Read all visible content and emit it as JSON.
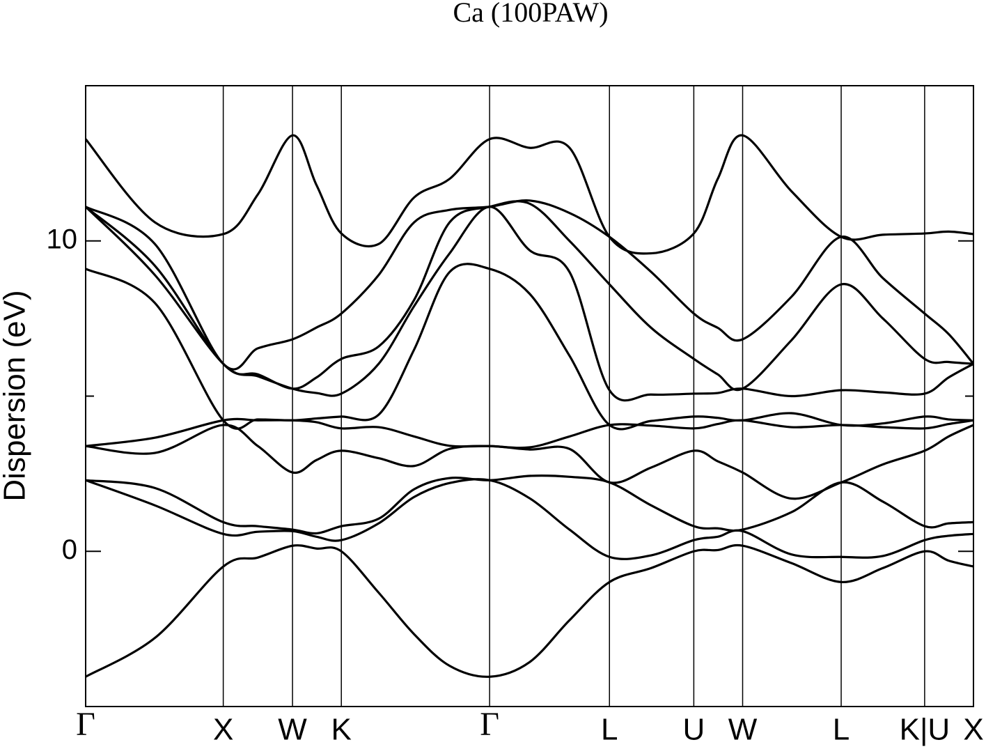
{
  "chart_data": {
    "type": "line",
    "title": "Ca (100PAW)",
    "y_label": "Dispersion (eV)",
    "color": "#000000",
    "xlim": [
      0,
      1
    ],
    "ylim": [
      -5,
      15
    ],
    "yticks": [
      0,
      10
    ],
    "yminorticks": [
      5
    ],
    "xticks": [
      {
        "value": 0,
        "label": "Γ"
      },
      {
        "value": 0.155,
        "label": "X"
      },
      {
        "value": 0.233,
        "label": "W"
      },
      {
        "value": 0.288,
        "label": "K"
      },
      {
        "value": 0.455,
        "label": "Γ"
      },
      {
        "value": 0.59,
        "label": "L"
      },
      {
        "value": 0.685,
        "label": "U"
      },
      {
        "value": 0.74,
        "label": "W"
      },
      {
        "value": 0.851,
        "label": "L"
      },
      {
        "value": 0.945,
        "label": "K|U"
      },
      {
        "value": 1,
        "label": "X"
      }
    ],
    "x": [
      0,
      0.078,
      0.155,
      0.194,
      0.233,
      0.26,
      0.288,
      0.33,
      0.37,
      0.41,
      0.455,
      0.5,
      0.545,
      0.59,
      0.637,
      0.685,
      0.712,
      0.74,
      0.795,
      0.851,
      0.898,
      0.945,
      0.972,
      1
    ],
    "series": [
      {
        "values": [
          -4.04,
          -2.79,
          -0.49,
          -0.2,
          0.18,
          0.09,
          0.0,
          -1.33,
          -2.67,
          -3.69,
          -4.04,
          -3.57,
          -2.22,
          -0.99,
          -0.54,
          0.0,
          0.04,
          0.18,
          -0.38,
          -0.99,
          -0.54,
          0.0,
          -0.3,
          -0.49
        ]
      },
      {
        "values": [
          2.29,
          1.48,
          0.56,
          0.63,
          0.65,
          0.47,
          0.36,
          0.9,
          1.75,
          2.2,
          2.29,
          1.71,
          0.7,
          -0.18,
          -0.13,
          0.36,
          0.47,
          0.65,
          -0.1,
          -0.18,
          -0.15,
          0.36,
          0.5,
          0.56
        ]
      },
      {
        "values": [
          2.29,
          2.04,
          0.94,
          0.81,
          0.7,
          0.58,
          0.81,
          1.05,
          2.0,
          2.36,
          2.29,
          2.43,
          2.4,
          2.22,
          1.48,
          0.81,
          0.74,
          0.7,
          1.26,
          2.22,
          1.6,
          0.81,
          0.9,
          0.94
        ]
      },
      {
        "values": [
          3.39,
          3.17,
          4.07,
          3.39,
          2.54,
          2.94,
          3.24,
          3.0,
          2.75,
          3.3,
          3.39,
          3.28,
          3.3,
          2.22,
          2.7,
          3.24,
          2.9,
          2.54,
          1.7,
          2.22,
          2.8,
          3.24,
          3.7,
          4.07
        ]
      },
      {
        "values": [
          3.39,
          3.66,
          4.22,
          4.22,
          4.22,
          4.16,
          3.96,
          4.0,
          3.7,
          3.4,
          3.39,
          3.35,
          3.7,
          4.07,
          4.05,
          3.96,
          4.1,
          4.22,
          4.0,
          4.07,
          4.0,
          3.96,
          4.1,
          4.22
        ]
      },
      {
        "values": [
          9.1,
          8.0,
          4.22,
          4.25,
          4.22,
          4.28,
          4.34,
          4.4,
          6.5,
          9.0,
          9.1,
          8.3,
          6.3,
          4.07,
          4.2,
          4.34,
          4.3,
          4.22,
          4.45,
          4.07,
          4.12,
          4.34,
          4.25,
          4.22
        ]
      },
      {
        "values": [
          11.1,
          8.9,
          6.04,
          5.64,
          5.24,
          5.1,
          5.08,
          6.04,
          7.9,
          9.6,
          11.1,
          9.7,
          9.0,
          5.19,
          5.05,
          5.08,
          5.1,
          5.24,
          5.0,
          5.19,
          5.12,
          5.08,
          5.6,
          6.04
        ]
      },
      {
        "values": [
          11.1,
          9.2,
          6.04,
          5.7,
          5.24,
          5.6,
          6.2,
          6.6,
          8.1,
          10.6,
          11.1,
          11.2,
          10.0,
          8.6,
          7.2,
          6.2,
          5.7,
          5.24,
          6.8,
          8.6,
          7.5,
          6.2,
          6.1,
          6.04
        ]
      },
      {
        "values": [
          11.1,
          9.9,
          6.04,
          6.54,
          6.83,
          7.21,
          7.66,
          8.9,
          10.6,
          11.0,
          11.1,
          11.3,
          10.9,
          10.13,
          9.0,
          7.66,
          7.2,
          6.83,
          8.2,
          10.13,
          8.8,
          7.66,
          7.0,
          6.04
        ]
      },
      {
        "values": [
          13.28,
          10.6,
          10.22,
          11.5,
          13.4,
          11.8,
          10.24,
          9.9,
          11.4,
          12.0,
          13.28,
          13.0,
          13.0,
          10.13,
          9.6,
          10.24,
          12.0,
          13.4,
          11.6,
          10.13,
          10.2,
          10.24,
          10.3,
          10.22
        ]
      }
    ]
  }
}
